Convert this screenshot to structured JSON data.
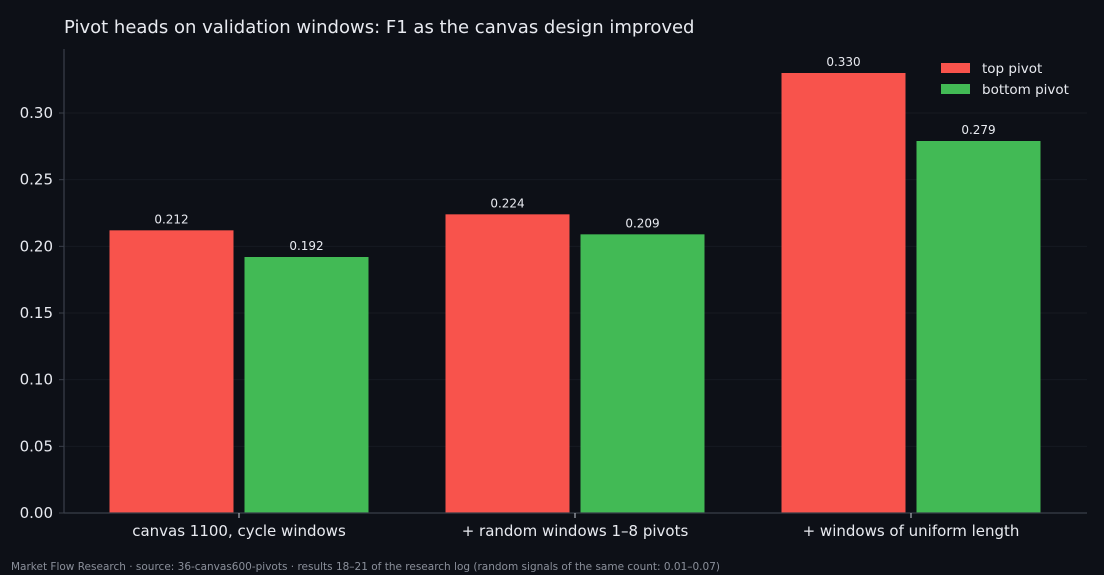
{
  "chart_data": {
    "type": "bar",
    "title": "Pivot heads on validation windows: F1 as the canvas design improved",
    "categories": [
      "canvas 1100, cycle windows",
      "+ random windows 1–8 pivots",
      "+ windows of uniform length"
    ],
    "series": [
      {
        "name": "top pivot",
        "color": "#f8534c",
        "values": [
          0.212,
          0.224,
          0.33
        ]
      },
      {
        "name": "bottom pivot",
        "color": "#42ba55",
        "values": [
          0.192,
          0.209,
          0.279
        ]
      }
    ],
    "value_labels": [
      [
        "0.212",
        "0.224",
        "0.330"
      ],
      [
        "0.192",
        "0.209",
        "0.279"
      ]
    ],
    "ylim": [
      0,
      0.348
    ],
    "yticks": [
      0.0,
      0.05,
      0.1,
      0.15,
      0.2,
      0.25,
      0.3
    ],
    "ytick_labels": [
      "0.00",
      "0.05",
      "0.10",
      "0.15",
      "0.20",
      "0.25",
      "0.30"
    ],
    "xlabel": "",
    "ylabel": "",
    "grid": true,
    "legend_position": "top-right"
  },
  "footer": "Market Flow Research · source: 36-canvas600-pivots · results 18–21 of the research log (random signals of the same count: 0.01–0.07)",
  "colors": {
    "background": "#0d1017",
    "axis": "#3a3f4a",
    "grid": "#161a22",
    "text": "#e8eaf0",
    "muted": "#8a8f9a"
  }
}
